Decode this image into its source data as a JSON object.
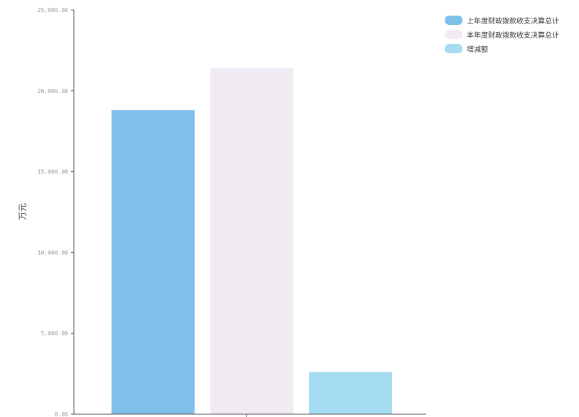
{
  "chart_data": {
    "type": "bar",
    "ylabel": "万元",
    "ylim": [
      0,
      25000
    ],
    "yticks": [
      "0.00",
      "5,000.00",
      "10,000.00",
      "15,000.00",
      "20,000.00",
      "25,000.00"
    ],
    "series": [
      {
        "name": "上年度财政拨款收支决算总计",
        "value": 18800,
        "color": "#7fc0ea"
      },
      {
        "name": "本年度财政拨款收支决算总计",
        "value": 21400,
        "color": "#f1ecf3"
      },
      {
        "name": "增减额",
        "value": 2600,
        "color": "#a6dcf1"
      }
    ],
    "grid": false,
    "legend_position": "top-right"
  }
}
